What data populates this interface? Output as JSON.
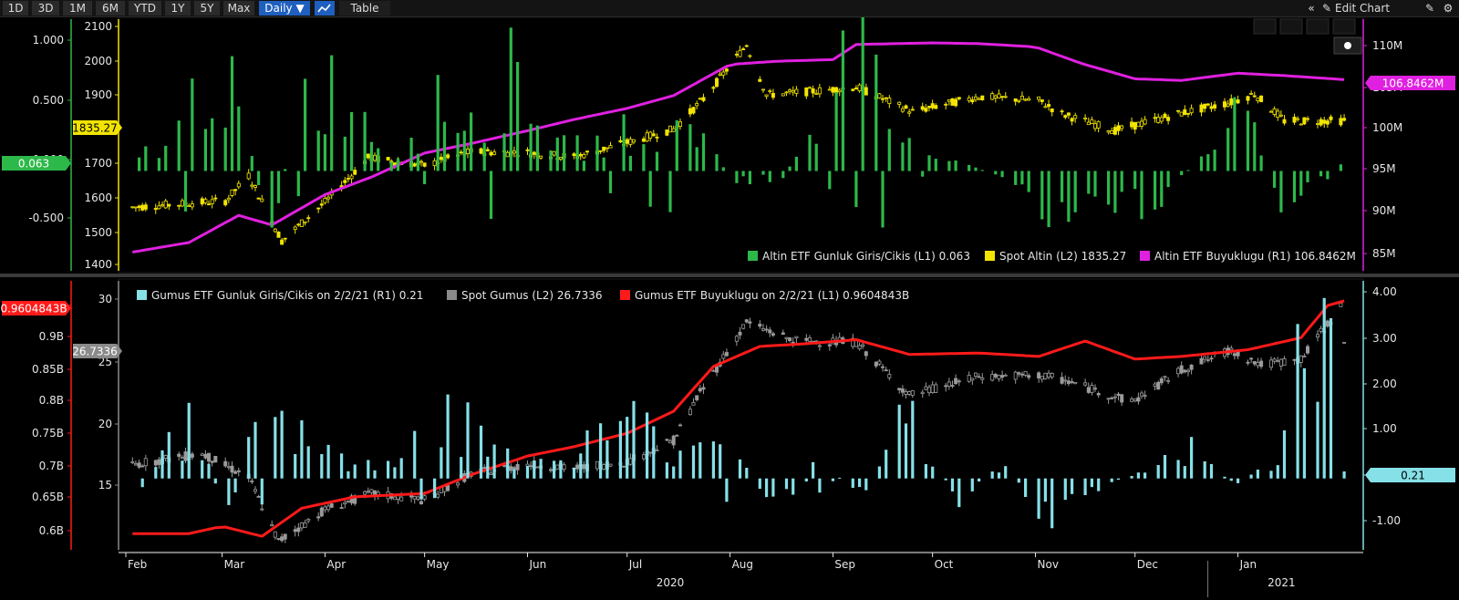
{
  "toolbar": {
    "ranges": [
      "1D",
      "3D",
      "1M",
      "6M",
      "YTD",
      "1Y",
      "5Y",
      "Max"
    ],
    "active_range": "6M",
    "interval": "Daily ▼",
    "table_label": "Table",
    "edit_chart_label": "Edit Chart",
    "collapse_icon": "double-chevron-left-icon",
    "edit_icon": "pencil-icon",
    "gear_icon": "gear-icon",
    "chart_type_icon": "line-chart-icon"
  },
  "chart_data": [
    {
      "type": "line",
      "panel": "top",
      "left_outer_axis": {
        "ticks": [
          "1.000",
          "0.500",
          "0.000",
          "-0.500"
        ],
        "current_label": "0.063",
        "color": "#2db84a"
      },
      "left_inner_axis": {
        "ticks": [
          "2100",
          "2000",
          "1900",
          "1800",
          "1700",
          "1600",
          "1500",
          "1400"
        ],
        "current_label": "1835.27",
        "color": "#f2e400"
      },
      "right_axis": {
        "ticks": [
          "110M",
          "105M",
          "100M",
          "95M",
          "90M",
          "85M"
        ],
        "current_label": "106.8462M",
        "color": "#e020e0"
      },
      "legend": [
        {
          "text": "Altin ETF Gunluk Giris/Cikis (L1) 0.063",
          "color": "#2db84a"
        },
        {
          "text": "Spot Altin (L2) 1835.27",
          "color": "#f2e400"
        },
        {
          "text": "Altin ETF Buyuklugu (R1) 106.8462M",
          "color": "#e020e0"
        }
      ],
      "series": [
        {
          "name": "Spot Altin",
          "kind": "candlestick",
          "axis": "L2",
          "color": "#f2e400",
          "x": [
            "2020-02-03",
            "2020-03-02",
            "2020-03-09",
            "2020-03-19",
            "2020-04-01",
            "2020-04-14",
            "2020-05-01",
            "2020-05-15",
            "2020-06-01",
            "2020-06-15",
            "2020-07-01",
            "2020-07-15",
            "2020-07-24",
            "2020-08-06",
            "2020-08-12",
            "2020-08-25",
            "2020-09-08",
            "2020-09-25",
            "2020-10-15",
            "2020-11-02",
            "2020-11-09",
            "2020-11-25",
            "2020-12-15",
            "2020-12-30",
            "2021-01-06",
            "2021-01-15",
            "2021-02-02"
          ],
          "y": [
            1578,
            1597,
            1672,
            1478,
            1593,
            1725,
            1702,
            1743,
            1740,
            1727,
            1770,
            1810,
            1900,
            2062,
            1912,
            1922,
            1935,
            1862,
            1907,
            1895,
            1855,
            1806,
            1858,
            1890,
            1915,
            1835,
            1835
          ]
        },
        {
          "name": "Altin ETF Buyuklugu",
          "kind": "line",
          "axis": "R1",
          "color": "#e020e0",
          "x": [
            "2020-02-03",
            "2020-02-20",
            "2020-03-06",
            "2020-03-16",
            "2020-04-01",
            "2020-04-15",
            "2020-05-01",
            "2020-05-15",
            "2020-06-01",
            "2020-06-15",
            "2020-07-01",
            "2020-07-15",
            "2020-08-01",
            "2020-08-15",
            "2020-09-01",
            "2020-09-08",
            "2020-10-01",
            "2020-10-15",
            "2020-11-01",
            "2020-11-15",
            "2020-12-01",
            "2020-12-15",
            "2021-01-01",
            "2021-01-15",
            "2021-02-02"
          ],
          "y": [
            85.2,
            86.4,
            89.8,
            88.6,
            92.4,
            94.6,
            97.6,
            98.8,
            100.4,
            101.8,
            103.2,
            104.8,
            108.7,
            109.1,
            109.3,
            111.2,
            111.4,
            111.3,
            110.9,
            108.8,
            106.9,
            106.7,
            107.6,
            107.3,
            106.8
          ]
        },
        {
          "name": "Altin ETF Gunluk Giris/Cikis",
          "kind": "bar",
          "axis": "L1",
          "color": "#2db84a",
          "x": [
            "2020-02-05",
            "2020-02-17",
            "2020-02-26",
            "2020-03-05",
            "2020-03-16",
            "2020-03-25",
            "2020-04-08",
            "2020-04-20",
            "2020-05-04",
            "2020-05-18",
            "2020-06-01",
            "2020-06-09",
            "2020-06-22",
            "2020-07-06",
            "2020-07-20",
            "2020-08-03",
            "2020-08-17",
            "2020-09-08",
            "2020-09-21",
            "2020-10-05",
            "2020-10-26",
            "2020-11-09",
            "2020-11-23",
            "2020-12-07",
            "2020-12-21",
            "2021-01-04",
            "2021-01-13",
            "2021-01-25",
            "2021-02-02"
          ],
          "y": [
            0.14,
            0.38,
            1.02,
            0.66,
            -0.52,
            0.72,
            0.81,
            0.11,
            0.6,
            0.48,
            1.12,
            0.21,
            0.25,
            0.43,
            0.46,
            -0.12,
            -0.06,
            1.18,
            0.24,
            0.15,
            -0.1,
            -0.52,
            -0.4,
            -0.28,
            0.13,
            0.58,
            -0.42,
            -0.12,
            0.063
          ]
        }
      ]
    },
    {
      "type": "line",
      "panel": "bottom",
      "left_outer_axis": {
        "ticks": [
          "0.95B",
          "0.9B",
          "0.85B",
          "0.8B",
          "0.75B",
          "0.7B",
          "0.65B",
          "0.6B"
        ],
        "current_label": "0.9604843B",
        "color": "#ff1a1a"
      },
      "left_inner_axis": {
        "ticks": [
          "30",
          "25",
          "20",
          "15"
        ],
        "current_label": "26.7336",
        "color": "#8a8a8a"
      },
      "right_axis": {
        "ticks": [
          "4.00",
          "3.00",
          "2.00",
          "1.00",
          "0.00",
          "-1.00"
        ],
        "current_label": "0.21",
        "color": "#86e0e8"
      },
      "legend": [
        {
          "text": "Gumus ETF Gunluk Giris/Cikis on 2/2/21 (R1) 0.21",
          "color": "#86e0e8"
        },
        {
          "text": "Spot Gumus (L2) 26.7336",
          "color": "#8a8a8a"
        },
        {
          "text": "Gumus ETF Buyuklugu on 2/2/21 (L1) 0.9604843B",
          "color": "#ff1a1a"
        }
      ],
      "series": [
        {
          "name": "Spot Gumus",
          "kind": "candlestick",
          "axis": "L2",
          "color": "#9a9a9a",
          "x": [
            "2020-02-03",
            "2020-02-24",
            "2020-03-09",
            "2020-03-18",
            "2020-04-01",
            "2020-04-15",
            "2020-05-01",
            "2020-05-15",
            "2020-06-01",
            "2020-06-15",
            "2020-07-01",
            "2020-07-15",
            "2020-07-22",
            "2020-08-06",
            "2020-08-20",
            "2020-09-08",
            "2020-09-24",
            "2020-10-15",
            "2020-11-02",
            "2020-11-09",
            "2020-11-30",
            "2020-12-15",
            "2020-12-30",
            "2021-01-08",
            "2021-01-20",
            "2021-02-01",
            "2021-02-02"
          ],
          "y": [
            17.8,
            18.6,
            16.8,
            12.0,
            14.4,
            15.6,
            15.1,
            17.1,
            17.8,
            17.5,
            18.0,
            19.6,
            22.8,
            28.5,
            27.1,
            27.0,
            23.0,
            24.4,
            24.5,
            24.2,
            22.5,
            24.9,
            26.4,
            25.3,
            25.7,
            29.7,
            26.73
          ]
        },
        {
          "name": "Gumus ETF Buyuklugu",
          "kind": "line",
          "axis": "L1",
          "color": "#ff1a1a",
          "x": [
            "2020-02-03",
            "2020-02-20",
            "2020-03-01",
            "2020-03-13",
            "2020-03-25",
            "2020-04-10",
            "2020-05-01",
            "2020-05-15",
            "2020-06-01",
            "2020-06-15",
            "2020-07-01",
            "2020-07-15",
            "2020-07-27",
            "2020-08-10",
            "2020-08-24",
            "2020-09-08",
            "2020-09-24",
            "2020-10-15",
            "2020-11-02",
            "2020-11-16",
            "2020-12-01",
            "2020-12-15",
            "2021-01-04",
            "2021-01-20",
            "2021-01-28",
            "2021-02-02"
          ],
          "y": [
            0.612,
            0.612,
            0.623,
            0.608,
            0.65,
            0.667,
            0.672,
            0.7,
            0.728,
            0.742,
            0.762,
            0.795,
            0.862,
            0.892,
            0.896,
            0.902,
            0.88,
            0.882,
            0.877,
            0.9,
            0.873,
            0.877,
            0.887,
            0.905,
            0.953,
            0.96
          ]
        },
        {
          "name": "Gumus ETF Gunluk Giris/Cikis",
          "kind": "bar",
          "axis": "R1",
          "color": "#86e0e8",
          "x": [
            "2020-02-06",
            "2020-02-20",
            "2020-03-04",
            "2020-03-12",
            "2020-03-26",
            "2020-04-09",
            "2020-04-23",
            "2020-05-07",
            "2020-05-21",
            "2020-06-04",
            "2020-06-18",
            "2020-07-02",
            "2020-07-16",
            "2020-07-30",
            "2020-08-13",
            "2020-08-27",
            "2020-09-10",
            "2020-09-24",
            "2020-10-08",
            "2020-10-22",
            "2020-11-05",
            "2020-11-19",
            "2020-12-03",
            "2020-12-17",
            "2020-12-31",
            "2021-01-14",
            "2021-01-21",
            "2021-01-27",
            "2021-02-02"
          ],
          "y": [
            0.35,
            1.15,
            -0.85,
            1.9,
            1.1,
            0.22,
            0.6,
            1.6,
            0.8,
            0.3,
            0.75,
            1.35,
            0.6,
            1.35,
            -0.95,
            0.42,
            -0.35,
            1.55,
            -0.55,
            0.3,
            -1.0,
            -0.25,
            0.15,
            0.75,
            -0.15,
            0.45,
            3.9,
            3.75,
            0.21
          ]
        }
      ]
    }
  ],
  "x_axis": {
    "months": [
      "Feb",
      "Mar",
      "Apr",
      "May",
      "Jun",
      "Jul",
      "Aug",
      "Sep",
      "Oct",
      "Nov",
      "Dec",
      "Jan"
    ],
    "years": [
      "2020",
      "2021"
    ]
  }
}
